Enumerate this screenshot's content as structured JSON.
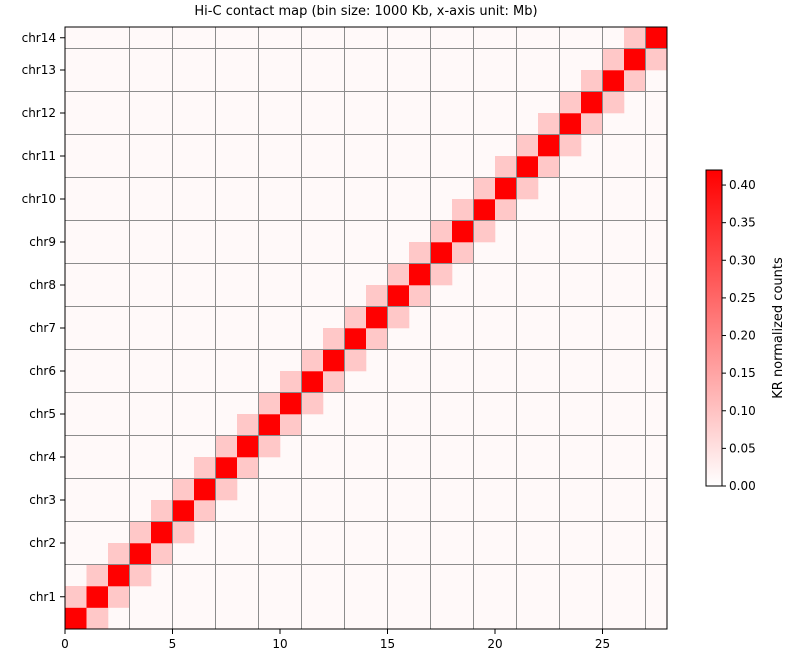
{
  "chart_data": {
    "type": "heatmap",
    "title": "Hi-C contact map (bin size: 1000 Kb, x-axis unit: Mb)",
    "x_range": [
      0,
      28
    ],
    "x_ticks": [
      0,
      5,
      10,
      15,
      20,
      25
    ],
    "chromosomes": [
      {
        "name": "chr1",
        "start": 0,
        "end": 3
      },
      {
        "name": "chr2",
        "start": 3,
        "end": 5
      },
      {
        "name": "chr3",
        "start": 5,
        "end": 7
      },
      {
        "name": "chr4",
        "start": 7,
        "end": 9
      },
      {
        "name": "chr5",
        "start": 9,
        "end": 11
      },
      {
        "name": "chr6",
        "start": 11,
        "end": 13
      },
      {
        "name": "chr7",
        "start": 13,
        "end": 15
      },
      {
        "name": "chr8",
        "start": 15,
        "end": 17
      },
      {
        "name": "chr9",
        "start": 17,
        "end": 19
      },
      {
        "name": "chr10",
        "start": 19,
        "end": 21
      },
      {
        "name": "chr11",
        "start": 21,
        "end": 23
      },
      {
        "name": "chr12",
        "start": 23,
        "end": 25
      },
      {
        "name": "chr13",
        "start": 25,
        "end": 27
      },
      {
        "name": "chr14",
        "start": 27,
        "end": 28
      }
    ],
    "background_value": 0.01,
    "diagonal_value": 0.42,
    "near_diagonal_value": 0.09,
    "colorbar": {
      "label": "KR normalized counts",
      "min": 0.0,
      "max": 0.42,
      "ticks": [
        "0.00",
        "0.05",
        "0.10",
        "0.15",
        "0.20",
        "0.25",
        "0.30",
        "0.35",
        "0.40"
      ],
      "low_color": "#ffffff",
      "high_color": "#ff0000"
    },
    "grid_color": "#8c8c8c"
  }
}
